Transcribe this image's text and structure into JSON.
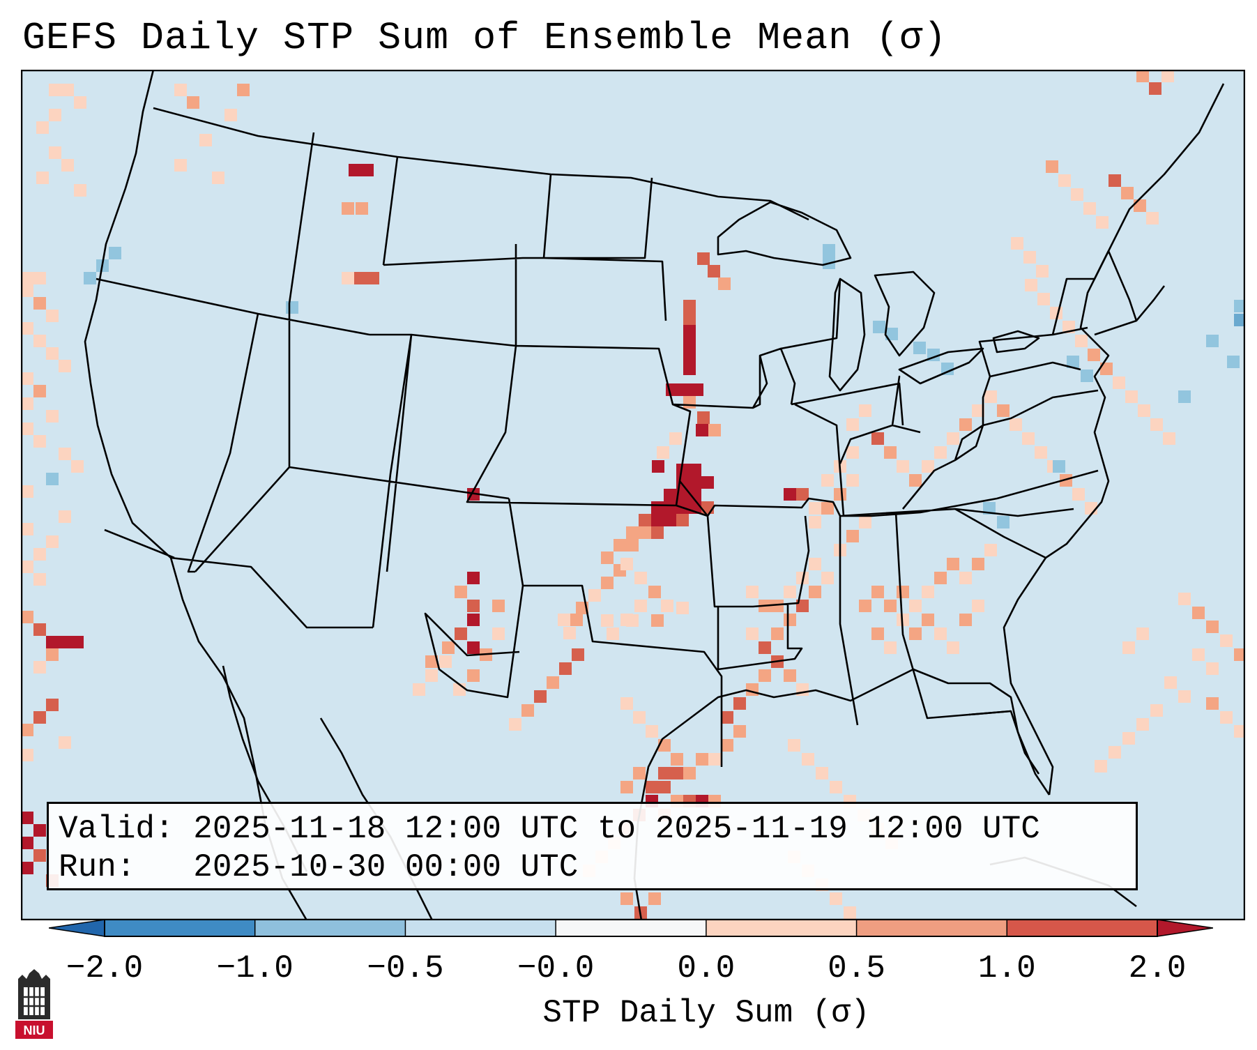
{
  "title": "GEFS Daily STP Sum of Ensemble Mean (σ)",
  "info": {
    "valid_label": "Valid:",
    "valid_value": "2025-11-18 12:00 UTC to 2025-11-19 12:00 UTC",
    "run_label": "Run:",
    "run_value": "2025-10-30 00:00 UTC"
  },
  "colorbar": {
    "label": "STP Daily Sum (σ)",
    "ticks": [
      "−2.0",
      "−1.0",
      "−0.5",
      "−0.0",
      "0.0",
      "0.5",
      "1.0",
      "2.0"
    ],
    "bin_colors": [
      "#3f8bc4",
      "#8fc0dd",
      "#c7dfee",
      "#f6f7f8",
      "#fcd4c0",
      "#ef9e81",
      "#d6574a"
    ],
    "under_color": "#2166ac",
    "over_color": "#b2182b"
  },
  "map": {
    "background_color": "#d1e5f0",
    "region": "CONUS",
    "level_colors": {
      "1": "#fcd4c0",
      "2": "#f4a583",
      "3": "#d6604d",
      "4": "#b2182b",
      "-1": "#92c5de",
      "-2": "#6aa9cf"
    }
  },
  "logo": {
    "text": "NIU"
  }
}
